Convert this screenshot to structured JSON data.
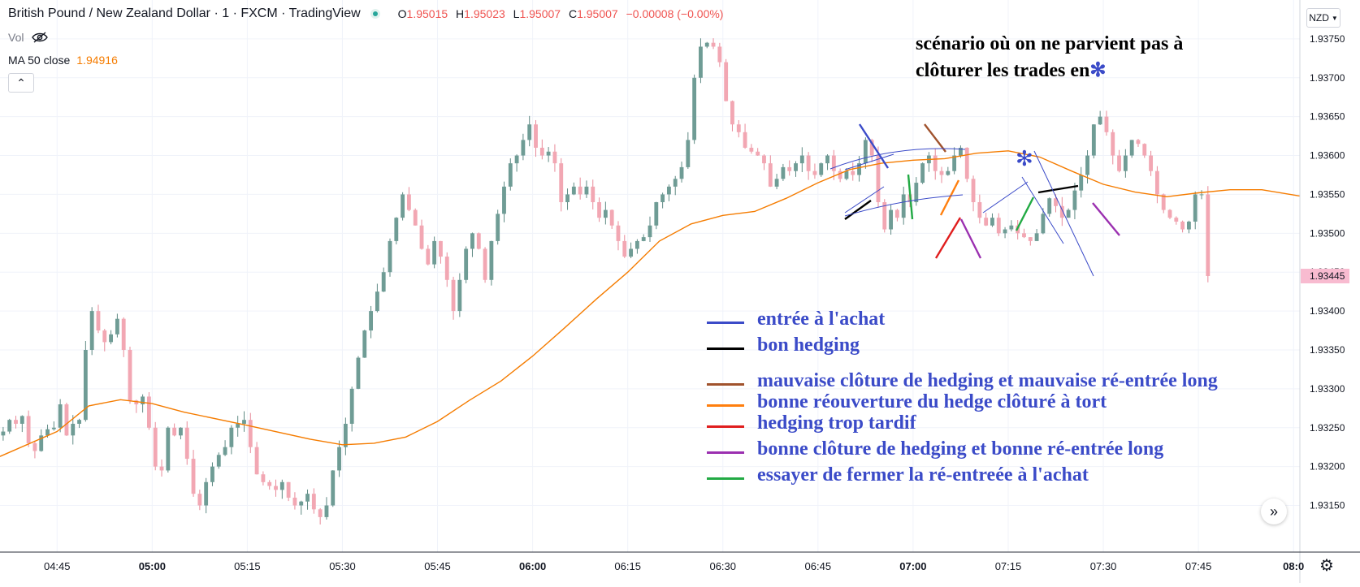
{
  "header": {
    "symbol_title": "British Pound / New Zealand Dollar · 1 · FXCM · TradingView",
    "ohlc": [
      {
        "key": "O",
        "value": "1.95015"
      },
      {
        "key": "H",
        "value": "1.95023"
      },
      {
        "key": "L",
        "value": "1.95007"
      },
      {
        "key": "C",
        "value": "1.95007"
      }
    ],
    "change": "−0.00008 (−0.00%)",
    "vol_label": "Vol",
    "ma_label": "MA 50 close",
    "ma_value": "1.94916",
    "collapse_glyph": "⌃"
  },
  "controls": {
    "currency": "NZD",
    "go_to_realtime_glyph": "»",
    "settings_glyph": "⚙"
  },
  "note": {
    "line1": "scénario où on ne parvient pas à",
    "line2": "clôturer les trades en",
    "star": "✻"
  },
  "annotation_legend": [
    {
      "color": "#3b4bc8",
      "label": "entrée à l'achat"
    },
    {
      "color": "#000000",
      "label": "bon hedging"
    },
    {
      "color": "#a0522d",
      "label": "mauvaise clôture de hedging et mauvaise ré-entrée long"
    },
    {
      "color": "#ff7f0e",
      "label": "bonne réouverture du hedge clôturé à tort"
    },
    {
      "color": "#e01e1e",
      "label": "hedging trop tardif"
    },
    {
      "color": "#9b30b0",
      "label": "bonne clôture de hedging et bonne ré-entrée long"
    },
    {
      "color": "#22aa44",
      "label": "essayer de fermer la ré-entreée à l'achat"
    }
  ],
  "chart_data": {
    "type": "candlestick",
    "title": "British Pound / New Zealand Dollar · 1 · FXCM · TradingView",
    "ylim": [
      1.9309,
      1.938
    ],
    "y_ticks": [
      "1.93150",
      "1.93200",
      "1.93250",
      "1.93300",
      "1.93350",
      "1.93400",
      "1.93450",
      "1.93500",
      "1.93550",
      "1.93600",
      "1.93650",
      "1.93700",
      "1.93750"
    ],
    "x_ticks": [
      {
        "label": "04:45",
        "minute": 285,
        "bold": false
      },
      {
        "label": "05:00",
        "minute": 300,
        "bold": true
      },
      {
        "label": "05:15",
        "minute": 315,
        "bold": false
      },
      {
        "label": "05:30",
        "minute": 330,
        "bold": false
      },
      {
        "label": "05:45",
        "minute": 345,
        "bold": false
      },
      {
        "label": "06:00",
        "minute": 360,
        "bold": true
      },
      {
        "label": "06:15",
        "minute": 375,
        "bold": false
      },
      {
        "label": "06:30",
        "minute": 390,
        "bold": false
      },
      {
        "label": "06:45",
        "minute": 405,
        "bold": false
      },
      {
        "label": "07:00",
        "minute": 420,
        "bold": true
      },
      {
        "label": "07:15",
        "minute": 435,
        "bold": false
      },
      {
        "label": "07:30",
        "minute": 450,
        "bold": false
      },
      {
        "label": "07:45",
        "minute": 465,
        "bold": false
      },
      {
        "label": "08:0",
        "minute": 480,
        "bold": true
      }
    ],
    "x_range_minutes": [
      276,
      481
    ],
    "current_price": "1.93445",
    "up_color": "#6f9c95",
    "down_color": "#f2a7b3",
    "ma_color": "#f57c00",
    "close": [
      1.93245,
      1.9326,
      1.93255,
      1.93265,
      1.9323,
      1.9322,
      1.9324,
      1.93248,
      1.9325,
      1.9328,
      1.9324,
      1.93255,
      1.9326,
      1.9335,
      1.934,
      1.93375,
      1.9336,
      1.9337,
      1.9339,
      1.9335,
      1.93285,
      1.9328,
      1.9329,
      1.9325,
      1.932,
      1.93195,
      1.9325,
      1.9324,
      1.9325,
      1.9321,
      1.93165,
      1.9315,
      1.9318,
      1.932,
      1.93215,
      1.93225,
      1.9325,
      1.93255,
      1.9326,
      1.93225,
      1.9319,
      1.9318,
      1.93175,
      1.9317,
      1.9318,
      1.9316,
      1.9315,
      1.93155,
      1.93165,
      1.93145,
      1.93135,
      1.9315,
      1.93195,
      1.93225,
      1.93255,
      1.933,
      1.9334,
      1.93375,
      1.934,
      1.93425,
      1.9345,
      1.9349,
      1.9352,
      1.9355,
      1.9353,
      1.9351,
      1.9348,
      1.9346,
      1.9349,
      1.9347,
      1.9344,
      1.934,
      1.9344,
      1.9348,
      1.935,
      1.9348,
      1.9344,
      1.9349,
      1.93525,
      1.9356,
      1.9359,
      1.936,
      1.9362,
      1.9364,
      1.9361,
      1.936,
      1.93605,
      1.9359,
      1.9354,
      1.9355,
      1.9356,
      1.9355,
      1.9356,
      1.9354,
      1.9352,
      1.9353,
      1.9351,
      1.9349,
      1.9347,
      1.9348,
      1.9349,
      1.93495,
      1.9351,
      1.9354,
      1.9355,
      1.9356,
      1.9357,
      1.93585,
      1.9362,
      1.937,
      1.9374,
      1.93745,
      1.9374,
      1.9372,
      1.9367,
      1.9364,
      1.9363,
      1.9361,
      1.93605,
      1.936,
      1.9359,
      1.9356,
      1.9357,
      1.93585,
      1.9358,
      1.9359,
      1.936,
      1.9358,
      1.93575,
      1.9359,
      1.936,
      1.9358,
      1.9357,
      1.9358,
      1.93575,
      1.9359,
      1.9362,
      1.936,
      1.9354,
      1.93505,
      1.9353,
      1.9352,
      1.9355,
      1.9354,
      1.93565,
      1.9359,
      1.936,
      1.9358,
      1.93575,
      1.9358,
      1.936,
      1.9361,
      1.9357,
      1.9354,
      1.9352,
      1.9351,
      1.9352,
      1.935,
      1.93505,
      1.9351,
      1.935,
      1.93495,
      1.9349,
      1.935,
      1.93525,
      1.93545,
      1.93535,
      1.9352,
      1.9353,
      1.93555,
      1.93575,
      1.936,
      1.9364,
      1.9365,
      1.9363,
      1.936,
      1.9358,
      1.936,
      1.9362,
      1.93615,
      1.936,
      1.9358,
      1.9355,
      1.9353,
      1.9352,
      1.93515,
      1.93505,
      1.93515,
      1.9355,
      1.9355,
      1.93445
    ],
    "ma50": [
      [
        276,
        1.93213
      ],
      [
        285,
        1.93245
      ],
      [
        290,
        1.93278
      ],
      [
        295,
        1.93286
      ],
      [
        300,
        1.93281
      ],
      [
        305,
        1.9327
      ],
      [
        315,
        1.93253
      ],
      [
        325,
        1.93235
      ],
      [
        330,
        1.93228
      ],
      [
        335,
        1.9323
      ],
      [
        340,
        1.93238
      ],
      [
        345,
        1.93258
      ],
      [
        350,
        1.93285
      ],
      [
        355,
        1.9331
      ],
      [
        360,
        1.93342
      ],
      [
        365,
        1.93378
      ],
      [
        370,
        1.93415
      ],
      [
        375,
        1.9345
      ],
      [
        380,
        1.9349
      ],
      [
        385,
        1.93512
      ],
      [
        390,
        1.93523
      ],
      [
        395,
        1.93528
      ],
      [
        400,
        1.93545
      ],
      [
        405,
        1.93565
      ],
      [
        410,
        1.93582
      ],
      [
        415,
        1.9359
      ],
      [
        420,
        1.93594
      ],
      [
        425,
        1.93596
      ],
      [
        430,
        1.93603
      ],
      [
        435,
        1.93606
      ],
      [
        440,
        1.93598
      ],
      [
        445,
        1.9358
      ],
      [
        450,
        1.93563
      ],
      [
        455,
        1.93553
      ],
      [
        460,
        1.93547
      ],
      [
        465,
        1.93552
      ],
      [
        470,
        1.93556
      ],
      [
        475,
        1.93556
      ],
      [
        481,
        1.93548
      ]
    ]
  }
}
